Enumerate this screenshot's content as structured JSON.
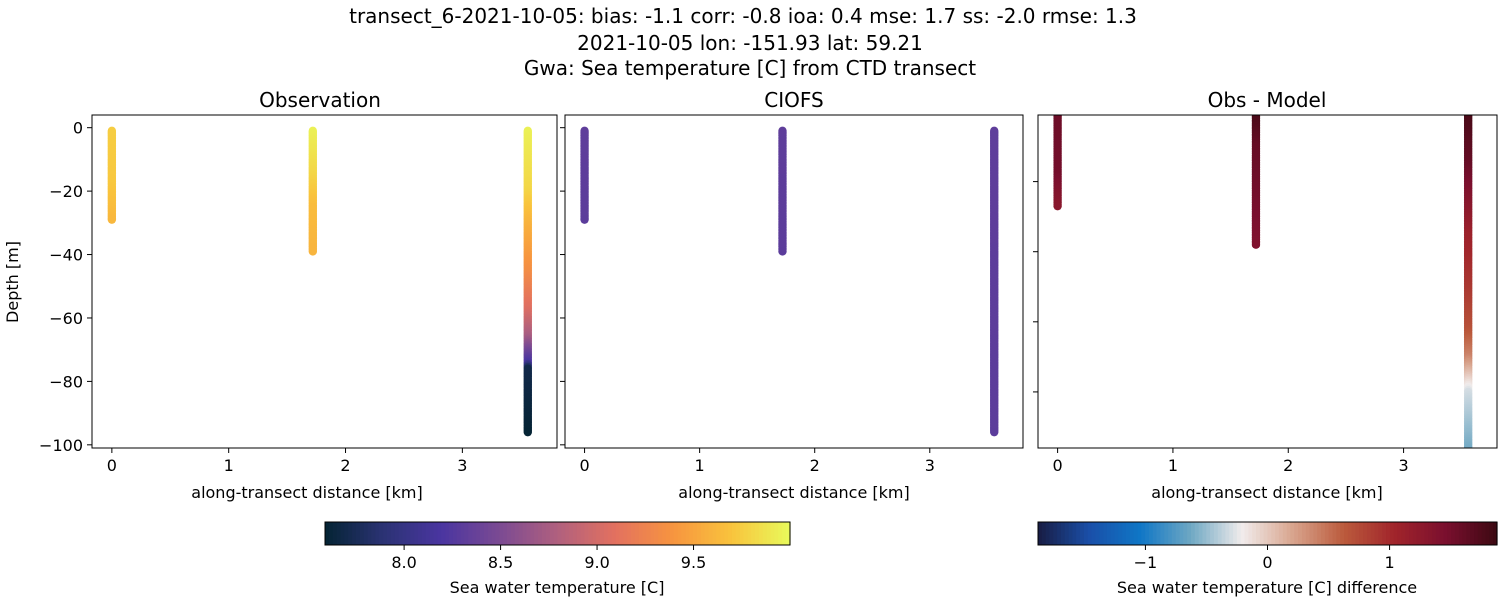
{
  "title_lines": [
    "transect_6-2021-10-05: bias: -1.1  corr: -0.8  ioa: 0.4  mse: 1.7  ss: -2.0  rmse: 1.3",
    "2021-10-05 lon: -151.93 lat: 59.21",
    "Gwa: Sea temperature [C] from CTD transect"
  ],
  "chart_data": [
    {
      "type": "scatter",
      "title": "Observation",
      "xlabel": "along-transect distance [km]",
      "ylabel": "Depth [m]",
      "xlim": [
        -0.17,
        3.81
      ],
      "ylim": [
        -101,
        4
      ],
      "xticks": [
        0,
        1,
        2,
        3
      ],
      "yticks": [
        0,
        -20,
        -40,
        -60,
        -80,
        -100
      ],
      "ytick_labels": [
        "0",
        "−20",
        "−40",
        "−60",
        "−80",
        "−100"
      ],
      "colormap": "thermal",
      "casts": [
        {
          "x": 0,
          "profile": [
            [
              -1,
              9.75
            ],
            [
              -18,
              9.72
            ],
            [
              -29,
              9.62
            ]
          ]
        },
        {
          "x": 1.72,
          "profile": [
            [
              -1,
              9.95
            ],
            [
              -15,
              9.8
            ],
            [
              -25,
              9.65
            ],
            [
              -39,
              9.6
            ]
          ]
        },
        {
          "x": 3.56,
          "profile": [
            [
              -1,
              9.95
            ],
            [
              -20,
              9.8
            ],
            [
              -30,
              9.6
            ],
            [
              -45,
              9.35
            ],
            [
              -58,
              9.05
            ],
            [
              -66,
              8.75
            ],
            [
              -71,
              8.4
            ],
            [
              -74,
              8.2
            ],
            [
              -76,
              7.7
            ],
            [
              -96,
              7.6
            ]
          ]
        }
      ]
    },
    {
      "type": "scatter",
      "title": "CIOFS",
      "xlabel": "along-transect distance [km]",
      "xlim": [
        -0.17,
        3.81
      ],
      "ylim": [
        -101,
        4
      ],
      "xticks": [
        0,
        1,
        2,
        3
      ],
      "colormap": "thermal",
      "casts": [
        {
          "x": 0,
          "profile": [
            [
              -1,
              8.32
            ],
            [
              -29,
              8.3
            ]
          ]
        },
        {
          "x": 1.72,
          "profile": [
            [
              -1,
              8.32
            ],
            [
              -39,
              8.3
            ]
          ]
        },
        {
          "x": 3.56,
          "profile": [
            [
              -1,
              8.32
            ],
            [
              -96,
              8.3
            ]
          ]
        }
      ]
    },
    {
      "type": "scatter",
      "title": "Obs - Model",
      "xlabel": "along-transect distance [km]",
      "xlim": [
        -0.17,
        3.81
      ],
      "ylim": [
        -96,
        -1
      ],
      "xticks": [
        0,
        1,
        2,
        3
      ],
      "colormap": "balance",
      "casts": [
        {
          "x": 0,
          "profile": [
            [
              -1,
              1.55
            ],
            [
              -18,
              1.5
            ],
            [
              -27,
              1.3
            ]
          ]
        },
        {
          "x": 1.72,
          "profile": [
            [
              -1,
              1.8
            ],
            [
              -10,
              1.6
            ],
            [
              -25,
              1.5
            ],
            [
              -38,
              1.4
            ]
          ]
        },
        {
          "x": 3.56,
          "profile": [
            [
              -1,
              1.8
            ],
            [
              -15,
              1.6
            ],
            [
              -25,
              1.35
            ],
            [
              -35,
              1.1
            ],
            [
              -50,
              0.9
            ],
            [
              -62,
              0.7
            ],
            [
              -70,
              0.4
            ],
            [
              -75,
              0.05
            ],
            [
              -80,
              -0.3
            ],
            [
              -96,
              -0.6
            ]
          ]
        }
      ]
    }
  ],
  "colorbars": [
    {
      "label": "Sea water temperature [C]",
      "range": [
        7.59,
        10.0
      ],
      "ticks": [
        8.0,
        8.5,
        9.0,
        9.5
      ],
      "tick_labels": [
        "8.0",
        "8.5",
        "9.0",
        "9.5"
      ],
      "colormap": "thermal"
    },
    {
      "label": "Sea water temperature [C] difference",
      "range": [
        -1.88,
        1.88
      ],
      "ticks": [
        -1,
        0,
        1
      ],
      "tick_labels": [
        "−1",
        "0",
        "1"
      ],
      "colormap": "balance"
    }
  ],
  "colormaps": {
    "thermal": [
      "#042333",
      "#2b3374",
      "#4a35a0",
      "#7b4a93",
      "#b0607e",
      "#e3715f",
      "#f7953f",
      "#f9c43d",
      "#e8fa5b"
    ],
    "balance": [
      "#181c43",
      "#1a4fa8",
      "#0f76c6",
      "#6fa8c3",
      "#f1ecec",
      "#d8a48d",
      "#bb5a3c",
      "#a0242b",
      "#7a0f2e",
      "#3c0912"
    ]
  }
}
